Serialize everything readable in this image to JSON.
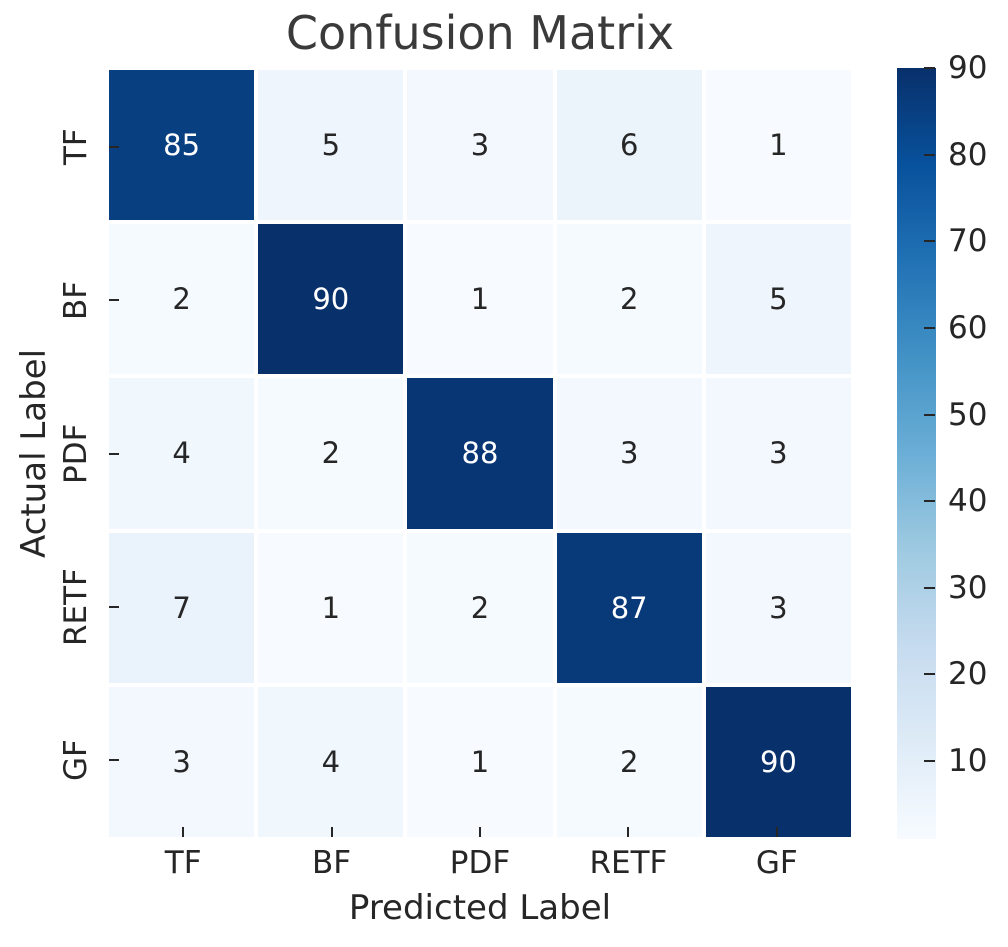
{
  "title": "Confusion Matrix",
  "axes": {
    "x_label": "Predicted Label",
    "y_label": "Actual Label"
  },
  "chart_data": {
    "type": "heatmap",
    "title": "Confusion Matrix",
    "xlabel": "Predicted Label",
    "ylabel": "Actual Label",
    "x_categories": [
      "TF",
      "BF",
      "PDF",
      "RETF",
      "GF"
    ],
    "y_categories": [
      "TF",
      "BF",
      "PDF",
      "RETF",
      "GF"
    ],
    "values": [
      [
        85,
        5,
        3,
        6,
        1
      ],
      [
        2,
        90,
        1,
        2,
        5
      ],
      [
        4,
        2,
        88,
        3,
        3
      ],
      [
        7,
        1,
        2,
        87,
        3
      ],
      [
        3,
        4,
        1,
        2,
        90
      ]
    ],
    "colormap": "Blues",
    "vmin": 1,
    "vmax": 90,
    "colorbar_ticks": [
      10,
      20,
      30,
      40,
      50,
      60,
      70,
      80,
      90
    ],
    "legend_position": "right",
    "grid": false
  },
  "colors": {
    "cmap_stops": [
      "#f7fbff",
      "#deebf7",
      "#c6dbef",
      "#9ecae1",
      "#6baed6",
      "#4292c6",
      "#2171b5",
      "#08519c",
      "#08306b"
    ],
    "annotation_dark_text": "#262626",
    "annotation_light_text": "#ffffff",
    "tick_color": "#262626",
    "title_color": "#3a3a3a"
  }
}
